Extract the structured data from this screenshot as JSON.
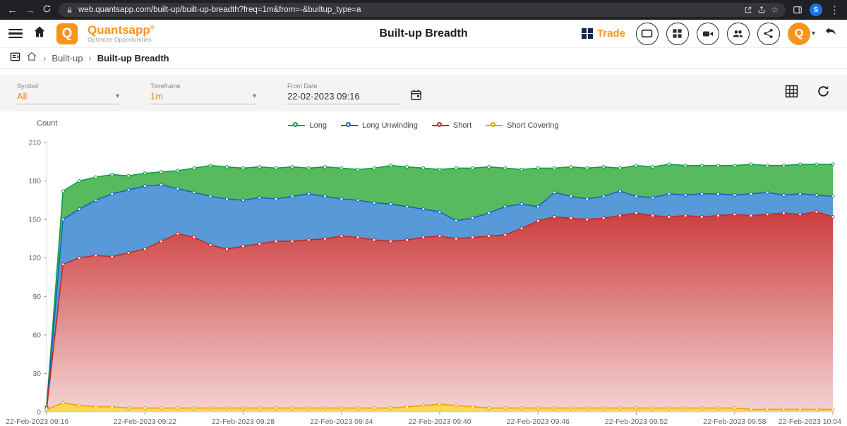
{
  "browser": {
    "url": "web.quantsapp.com/built-up/built-up-breadth?freq=1m&from=-&builtup_type=a",
    "back": "←",
    "forward": "→",
    "star": "☆",
    "kebab": "⋮",
    "avatar_letter": "S",
    "avatar_color": "#1a73e8"
  },
  "header": {
    "brand": "Quantsapp",
    "reg": "®",
    "tagline": "Optimize Opportunities",
    "logo_letter": "Q",
    "title": "Built-up Breadth",
    "trade_label": "Trade",
    "avatar_letter": "Q",
    "caret": "▾"
  },
  "breadcrumb": {
    "separator": "›",
    "items": [
      "Built-up",
      "Built-up Breadth"
    ]
  },
  "filters": {
    "symbol_label": "Symbol",
    "symbol_value": "All",
    "timeframe_label": "Timeframe",
    "timeframe_value": "1m",
    "fromdate_label": "From Date",
    "fromdate_value": "22-02-2023 09:16",
    "caret": "▾"
  },
  "chart_data": {
    "type": "area",
    "title": "Built-up Breadth",
    "ylabel": "Count",
    "ylim": [
      0,
      210
    ],
    "y_ticks": [
      0,
      30,
      60,
      90,
      120,
      150,
      180,
      210
    ],
    "x_ticks": [
      {
        "i": 0,
        "label": "22-Feb-2023 09:16"
      },
      {
        "i": 6,
        "label": "22-Feb-2023 09:22"
      },
      {
        "i": 12,
        "label": "22-Feb-2023 09:28"
      },
      {
        "i": 18,
        "label": "22-Feb-2023 09:34"
      },
      {
        "i": 24,
        "label": "22-Feb-2023 09:40"
      },
      {
        "i": 30,
        "label": "22-Feb-2023 09:46"
      },
      {
        "i": 36,
        "label": "22-Feb-2023 09:52"
      },
      {
        "i": 42,
        "label": "22-Feb-2023 09:58"
      },
      {
        "i": 48,
        "label": "22-Feb-2023 10:04"
      }
    ],
    "legend_position": "top-center",
    "grid": false,
    "series": [
      {
        "name": "Long",
        "color": "#0e9f43",
        "fill": "#4ab553",
        "values": [
          4,
          172,
          180,
          183,
          185,
          184,
          186,
          187,
          188,
          190,
          192,
          191,
          190,
          191,
          190,
          191,
          190,
          191,
          190,
          189,
          190,
          192,
          191,
          190,
          189,
          190,
          190,
          191,
          190,
          189,
          190,
          190,
          191,
          190,
          191,
          190,
          192,
          191,
          193,
          192,
          192,
          192,
          192,
          193,
          192,
          192,
          193,
          193,
          193
        ]
      },
      {
        "name": "Long Unwinding",
        "color": "#1565c0",
        "fill": "#4a92d4",
        "values": [
          3,
          150,
          158,
          165,
          170,
          173,
          176,
          177,
          174,
          171,
          168,
          166,
          165,
          167,
          166,
          168,
          170,
          168,
          166,
          165,
          163,
          162,
          160,
          158,
          156,
          149,
          151,
          155,
          160,
          162,
          160,
          171,
          168,
          166,
          168,
          172,
          168,
          167,
          170,
          169,
          170,
          170,
          169,
          170,
          171,
          169,
          170,
          169,
          168
        ]
      },
      {
        "name": "Short",
        "color": "#c62828",
        "fill": "gradient",
        "values": [
          2,
          115,
          120,
          122,
          121,
          124,
          127,
          133,
          139,
          136,
          130,
          127,
          129,
          131,
          133,
          133,
          134,
          135,
          137,
          136,
          134,
          133,
          134,
          136,
          137,
          135,
          136,
          137,
          138,
          143,
          149,
          152,
          151,
          150,
          151,
          153,
          155,
          153,
          152,
          153,
          152,
          153,
          154,
          153,
          154,
          155,
          154,
          156,
          152
        ]
      },
      {
        "name": "Short Covering",
        "color": "#e8a21a",
        "fill": "#ffd64e",
        "values": [
          2,
          7,
          5,
          4,
          4,
          3,
          3,
          3,
          3,
          3,
          3,
          3,
          3,
          3,
          3,
          3,
          3,
          3,
          3,
          3,
          3,
          3,
          4,
          5,
          6,
          5,
          4,
          3,
          3,
          3,
          3,
          3,
          3,
          3,
          3,
          3,
          3,
          3,
          3,
          3,
          3,
          3,
          3,
          2,
          2,
          2,
          2,
          2,
          2
        ]
      }
    ]
  }
}
